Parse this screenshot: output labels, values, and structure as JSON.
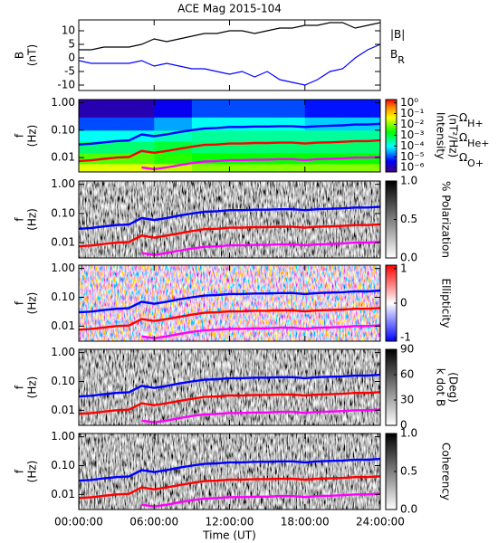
{
  "overlay": {
    "x": [
      0,
      1,
      2,
      3,
      4,
      5,
      6,
      7,
      8,
      9,
      10,
      11,
      12,
      13,
      14,
      15,
      16,
      17,
      18,
      19,
      20,
      21,
      22,
      23,
      24
    ],
    "series": [
      {
        "name": "Ω",
        "sub": "H+",
        "color": "#0000ff",
        "values": [
          0.03,
          0.032,
          0.036,
          0.04,
          0.042,
          0.07,
          0.06,
          0.07,
          0.085,
          0.1,
          0.115,
          0.12,
          0.13,
          0.13,
          0.135,
          0.135,
          0.14,
          0.14,
          0.13,
          0.14,
          0.145,
          0.15,
          0.16,
          0.16,
          0.17
        ]
      },
      {
        "name": "Ω",
        "sub": "He+",
        "color": "#ff0000",
        "values": [
          0.0075,
          0.008,
          0.009,
          0.01,
          0.0105,
          0.0175,
          0.015,
          0.0175,
          0.021,
          0.025,
          0.029,
          0.03,
          0.0325,
          0.0325,
          0.034,
          0.034,
          0.035,
          0.035,
          0.0325,
          0.035,
          0.036,
          0.0375,
          0.04,
          0.04,
          0.0425
        ]
      },
      {
        "name": "Ω",
        "sub": "O+",
        "color": "#ff00ff",
        "values": [
          null,
          null,
          null,
          null,
          null,
          0.0044,
          0.0038,
          0.0044,
          0.0053,
          0.0063,
          0.0072,
          0.0075,
          0.0081,
          0.0081,
          0.0084,
          0.0084,
          0.0088,
          0.0088,
          0.0081,
          0.0088,
          0.009,
          0.0094,
          0.01,
          0.01,
          0.0106
        ]
      }
    ]
  },
  "chart_data": [
    {
      "type": "line",
      "title": "ACE Mag 2015-104",
      "ylabel": "B",
      "yunit": "(nT)",
      "x": [
        0,
        1,
        2,
        3,
        4,
        5,
        6,
        7,
        8,
        9,
        10,
        11,
        12,
        13,
        14,
        15,
        16,
        17,
        18,
        19,
        20,
        21,
        22,
        23,
        24
      ],
      "xlim": [
        0,
        24
      ],
      "xticks": [
        0,
        6,
        12,
        18,
        24
      ],
      "ylim": [
        -12,
        14
      ],
      "yticks": [
        -10,
        -5,
        0,
        5,
        10
      ],
      "series": [
        {
          "name": "|B|",
          "color": "#000000",
          "values": [
            3,
            3,
            4,
            4,
            4,
            5,
            7,
            6,
            7,
            8,
            9,
            9,
            10,
            10,
            9,
            10,
            11,
            11,
            12,
            12,
            13,
            13,
            11,
            12,
            13
          ]
        },
        {
          "name": "B",
          "sub": "R",
          "color": "#0000ff",
          "values": [
            -1,
            -2,
            -2,
            -2,
            -2,
            -1,
            -3,
            -2,
            -3,
            -4,
            -4,
            -5,
            -6,
            -5,
            -7,
            -5,
            -8,
            -9,
            -10,
            -8,
            -5,
            -4,
            0,
            3,
            5
          ]
        }
      ]
    },
    {
      "type": "spectrogram",
      "ylabel": "f",
      "yunit": "(Hz)",
      "yscale": "log",
      "ylim": [
        0.003,
        1.3
      ],
      "yticks": [
        {
          "value": 0.01,
          "label": "0.01"
        },
        {
          "value": 0.1,
          "label": "0.10"
        },
        {
          "value": 1,
          "label": "1.00"
        }
      ],
      "xlim": [
        0,
        24
      ],
      "xticks": [
        0,
        6,
        12,
        18,
        24
      ],
      "colormap": "rainbow",
      "colorbar_label": "Intensity",
      "colorbar_unit": "(nT²/Hz)",
      "colorbar_scale": "log",
      "colorbar_lim": [
        4e-07,
        2
      ],
      "colorbar_ticks": [
        {
          "value": 1,
          "label": "10⁰"
        },
        {
          "value": 0.1,
          "label": "10⁻¹"
        },
        {
          "value": 0.01,
          "label": "10⁻²"
        },
        {
          "value": 0.001,
          "label": "10⁻³"
        },
        {
          "value": 0.0001,
          "label": "10⁻⁴"
        },
        {
          "value": 1e-05,
          "label": "10⁻⁵"
        },
        {
          "value": 1e-06,
          "label": "10⁻⁶"
        }
      ],
      "cells_x": [
        0,
        3,
        6,
        9,
        12,
        15,
        18,
        21,
        24
      ],
      "cells_f": [
        0.003,
        0.006,
        0.015,
        0.04,
        0.1,
        0.3,
        1.3
      ],
      "intensity": [
        [
          0.03,
          0.03,
          0.02,
          0.01,
          0.01,
          0.01,
          0.01,
          0.01
        ],
        [
          0.005,
          0.005,
          0.003,
          0.002,
          0.002,
          0.002,
          0.002,
          0.002
        ],
        [
          0.0005,
          0.0005,
          0.001,
          0.0005,
          0.0005,
          0.0005,
          0.0005,
          0.0005
        ],
        [
          0.0001,
          0.0001,
          0.0002,
          0.0003,
          0.0003,
          0.0003,
          0.0003,
          0.0003
        ],
        [
          1e-05,
          1e-05,
          3e-05,
          0.0001,
          0.0001,
          0.0001,
          5e-05,
          5e-05
        ],
        [
          1e-06,
          1e-06,
          3e-06,
          1e-05,
          1e-05,
          1e-05,
          5e-06,
          5e-06
        ]
      ],
      "legend": "right"
    },
    {
      "type": "spectrogram",
      "ylabel": "f",
      "yunit": "(Hz)",
      "yscale": "log",
      "ylim": [
        0.003,
        1.3
      ],
      "yticks": [
        {
          "value": 0.01,
          "label": "0.01"
        },
        {
          "value": 0.1,
          "label": "0.10"
        },
        {
          "value": 1,
          "label": "1.00"
        }
      ],
      "xlim": [
        0,
        24
      ],
      "xticks": [
        0,
        6,
        12,
        18,
        24
      ],
      "colormap": "gray",
      "colorbar_label": "% Polarization",
      "colorbar_scale": "linear",
      "colorbar_lim": [
        0,
        1
      ],
      "colorbar_ticks": [
        {
          "value": 0,
          "label": "0.0"
        },
        {
          "value": 0.5,
          "label": "0.5"
        },
        {
          "value": 1,
          "label": "1.0"
        }
      ]
    },
    {
      "type": "spectrogram",
      "ylabel": "f",
      "yunit": "(Hz)",
      "yscale": "log",
      "ylim": [
        0.003,
        1.3
      ],
      "yticks": [
        {
          "value": 0.01,
          "label": "0.01"
        },
        {
          "value": 0.1,
          "label": "0.10"
        },
        {
          "value": 1,
          "label": "1.00"
        }
      ],
      "xlim": [
        0,
        24
      ],
      "xticks": [
        0,
        6,
        12,
        18,
        24
      ],
      "colormap": "bwr",
      "colorbar_label": "Ellipticity",
      "colorbar_scale": "linear",
      "colorbar_lim": [
        -1.1,
        1.1
      ],
      "colorbar_ticks": [
        -1,
        0,
        1
      ]
    },
    {
      "type": "spectrogram",
      "ylabel": "f",
      "yunit": "(Hz)",
      "yscale": "log",
      "ylim": [
        0.003,
        1.3
      ],
      "yticks": [
        {
          "value": 0.01,
          "label": "0.01"
        },
        {
          "value": 0.1,
          "label": "0.10"
        },
        {
          "value": 1,
          "label": "1.00"
        }
      ],
      "xlim": [
        0,
        24
      ],
      "xticks": [
        0,
        6,
        12,
        18,
        24
      ],
      "colormap": "gray",
      "colorbar_label": "k dot B",
      "colorbar_unit": "(Deg)",
      "colorbar_scale": "linear",
      "colorbar_lim": [
        0,
        90
      ],
      "colorbar_ticks": [
        0,
        30,
        60,
        90
      ]
    },
    {
      "type": "spectrogram",
      "ylabel": "f",
      "yunit": "(Hz)",
      "yscale": "log",
      "ylim": [
        0.003,
        1.3
      ],
      "yticks": [
        {
          "value": 0.01,
          "label": "0.01"
        },
        {
          "value": 0.1,
          "label": "0.10"
        },
        {
          "value": 1,
          "label": "1.00"
        }
      ],
      "xlim": [
        0,
        24
      ],
      "xticks": [
        {
          "value": 0,
          "label": "00:00:00"
        },
        {
          "value": 6,
          "label": "06:00:00"
        },
        {
          "value": 12,
          "label": "12:00:00"
        },
        {
          "value": 18,
          "label": "18:00:00"
        },
        {
          "value": 24,
          "label": "24:00:00"
        }
      ],
      "xlabel": "Time (UT)",
      "colormap": "gray",
      "colorbar_label": "Coherency",
      "colorbar_scale": "linear",
      "colorbar_lim": [
        0,
        1
      ],
      "colorbar_ticks": [
        {
          "value": 0,
          "label": "0.0"
        },
        {
          "value": 0.5,
          "label": "0.5"
        },
        {
          "value": 1,
          "label": "1.0"
        }
      ]
    }
  ]
}
